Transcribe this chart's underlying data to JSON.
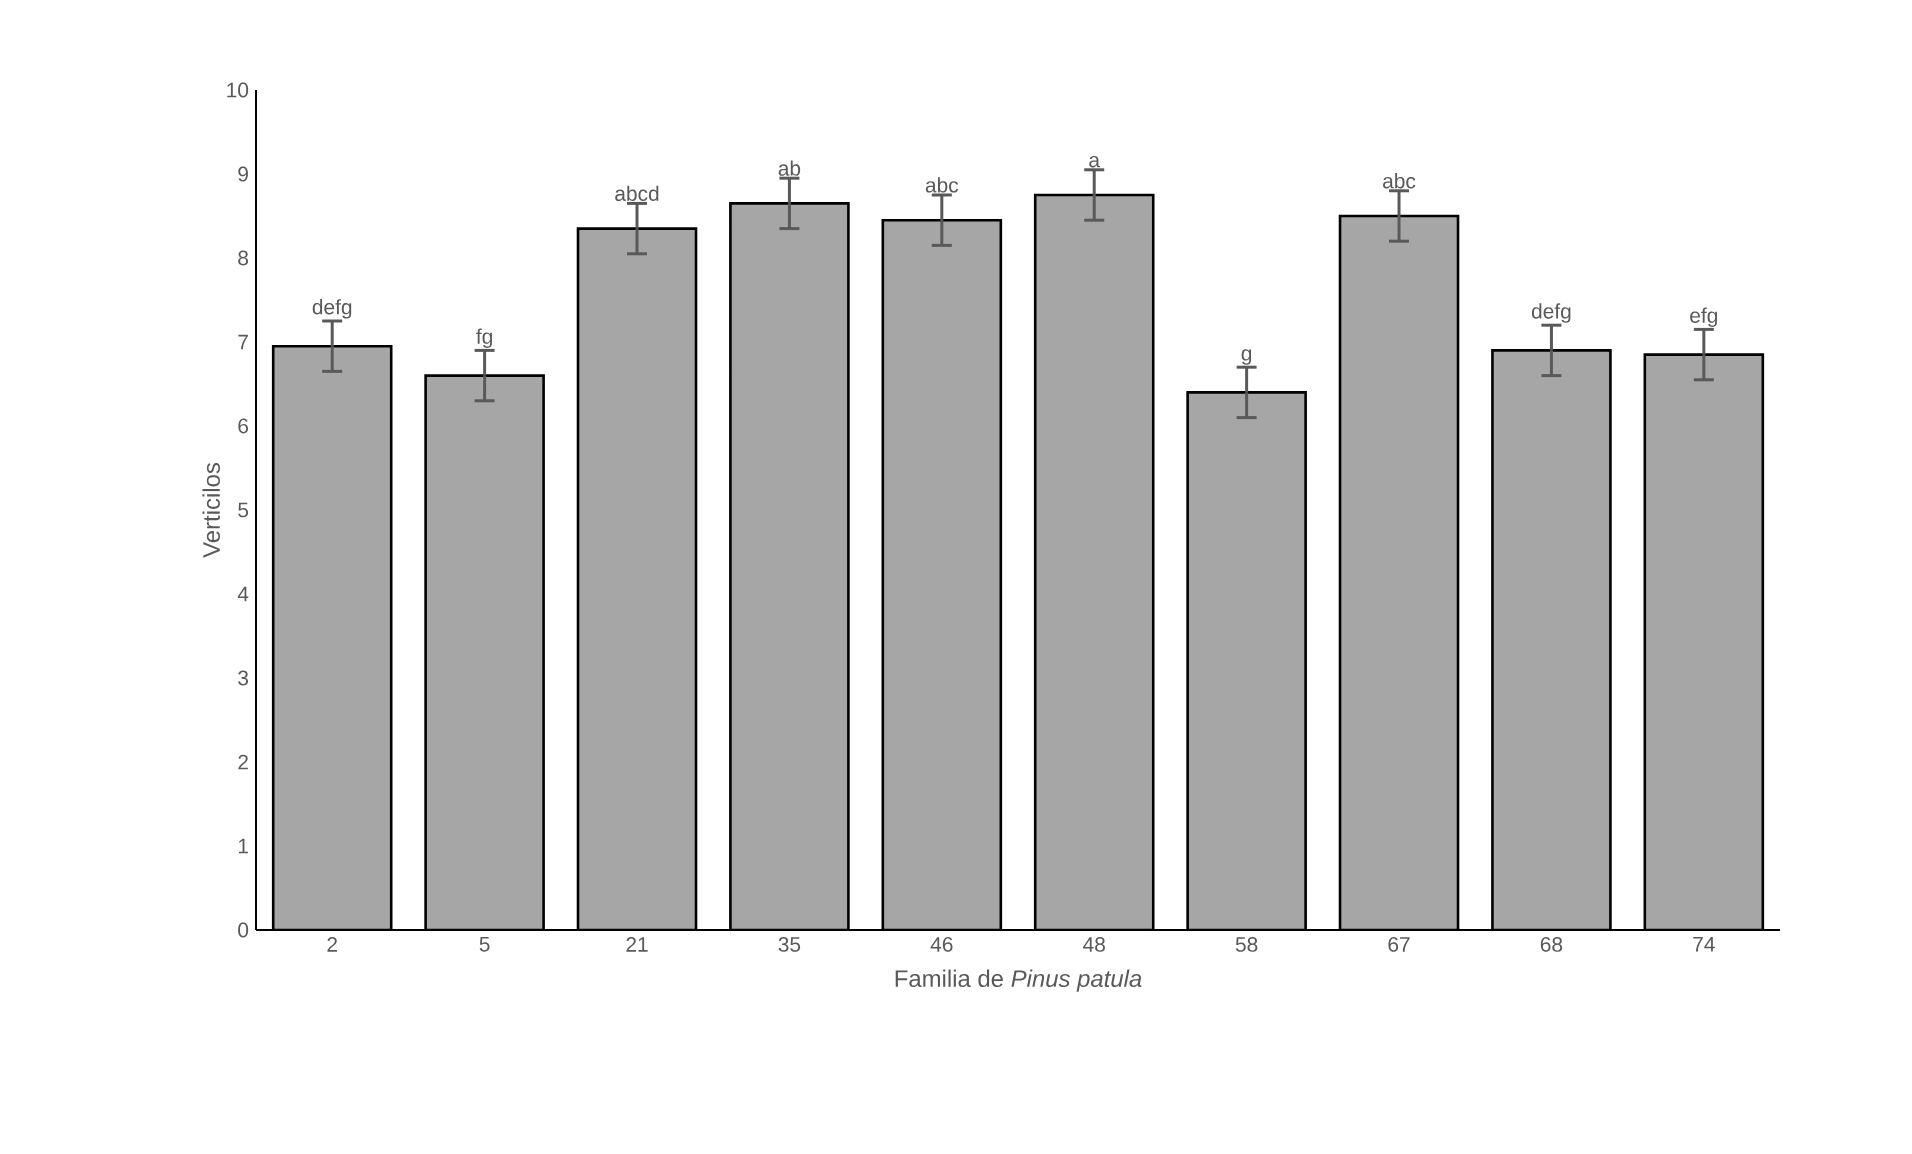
{
  "chart_data": {
    "type": "bar",
    "xlabel": "Familia de *Pinus patula*",
    "ylabel": "Verticilos",
    "categories": [
      "2",
      "5",
      "21",
      "35",
      "46",
      "48",
      "58",
      "67",
      "68",
      "74"
    ],
    "values": [
      6.95,
      6.6,
      8.35,
      8.65,
      8.45,
      8.75,
      6.4,
      8.5,
      6.9,
      6.85
    ],
    "errors": [
      0.3,
      0.3,
      0.3,
      0.3,
      0.3,
      0.3,
      0.3,
      0.3,
      0.3,
      0.3
    ],
    "color": "#a6a6a6",
    "ylim": [
      0,
      10
    ],
    "yticks": [
      0,
      1,
      2,
      3,
      4,
      5,
      6,
      7,
      8,
      9,
      10
    ],
    "grid": false,
    "annotations": [
      "defg",
      "fg",
      "abcd",
      "ab",
      "abc",
      "a",
      "g",
      "abc",
      "defg",
      "efg"
    ]
  }
}
